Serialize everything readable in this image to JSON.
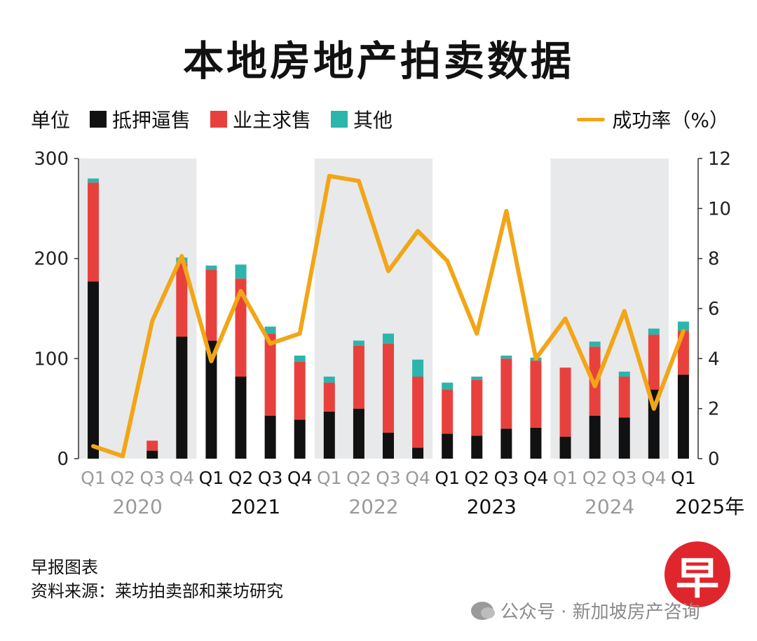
{
  "title": "本地房地产拍卖数据",
  "legend": {
    "unit": "单位",
    "items": [
      {
        "label": "抵押逼售",
        "color": "#111111"
      },
      {
        "label": "业主求售",
        "color": "#e8413d"
      },
      {
        "label": "其他",
        "color": "#2bb5ac"
      }
    ],
    "line_label": "成功率（%）",
    "line_color": "#f2a516"
  },
  "footer": {
    "line1": "早报图表",
    "line2": "资料来源：莱坊拍卖部和莱坊研究"
  },
  "logo_char": "早",
  "watermark": "公众号 · 新加坡房产咨询",
  "chart_data": {
    "type": "bar",
    "stacked": true,
    "categories": [
      "Q1",
      "Q2",
      "Q3",
      "Q4",
      "Q1",
      "Q2",
      "Q3",
      "Q4",
      "Q1",
      "Q2",
      "Q3",
      "Q4",
      "Q1",
      "Q2",
      "Q3",
      "Q4",
      "Q1",
      "Q2",
      "Q3",
      "Q4",
      "Q1"
    ],
    "year_labels": [
      "2020",
      "2021",
      "2022",
      "2023",
      "2024",
      "2025年"
    ],
    "year_category_start": [
      0,
      4,
      8,
      12,
      16,
      20
    ],
    "shaded_years": [
      0,
      2,
      4
    ],
    "series": [
      {
        "name": "抵押逼售",
        "color": "#111111",
        "values": [
          177,
          0,
          8,
          122,
          118,
          82,
          43,
          39,
          47,
          50,
          26,
          11,
          25,
          23,
          30,
          31,
          22,
          43,
          41,
          69,
          84
        ]
      },
      {
        "name": "业主求售",
        "color": "#e8413d",
        "values": [
          99,
          0,
          10,
          73,
          71,
          98,
          82,
          58,
          29,
          63,
          89,
          71,
          44,
          56,
          70,
          67,
          69,
          69,
          41,
          55,
          44
        ]
      },
      {
        "name": "其他",
        "color": "#2bb5ac",
        "values": [
          4,
          0,
          0,
          6,
          4,
          14,
          7,
          6,
          6,
          5,
          10,
          17,
          7,
          3,
          3,
          3,
          0,
          5,
          5,
          6,
          9
        ]
      }
    ],
    "line_series": {
      "name": "成功率（%）",
      "color": "#f2a516",
      "values": [
        0.5,
        0.1,
        5.5,
        8.1,
        3.9,
        6.7,
        4.6,
        5.0,
        11.3,
        11.1,
        7.5,
        9.1,
        7.9,
        5.0,
        9.9,
        4.0,
        5.6,
        2.9,
        5.9,
        2.0,
        5.1
      ]
    },
    "ylim": [
      0,
      300
    ],
    "y_ticks": [
      0,
      100,
      200,
      300
    ],
    "y2lim": [
      0,
      12
    ],
    "y2_ticks": [
      0,
      2,
      4,
      6,
      8,
      10,
      12
    ]
  }
}
